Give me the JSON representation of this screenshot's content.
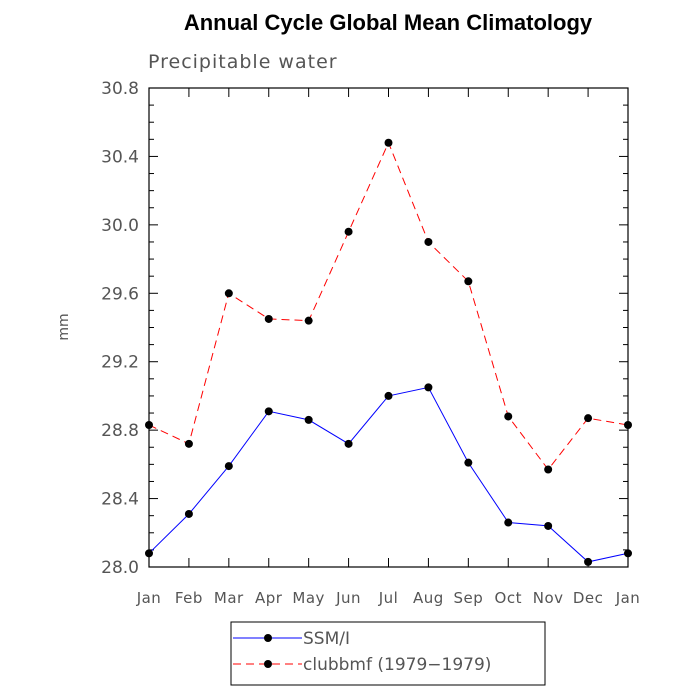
{
  "chart_data": {
    "type": "line",
    "title": "Annual Cycle Global Mean Climatology",
    "subtitle": "Precipitable water",
    "ylabel": "mm",
    "xlabel": "",
    "categories": [
      "Jan",
      "Feb",
      "Mar",
      "Apr",
      "May",
      "Jun",
      "Jul",
      "Aug",
      "Sep",
      "Oct",
      "Nov",
      "Dec",
      "Jan"
    ],
    "ylim": [
      28.0,
      30.8
    ],
    "yticks": [
      "28.0",
      "28.4",
      "28.8",
      "29.2",
      "29.6",
      "30.0",
      "30.4",
      "30.8"
    ],
    "grid": false,
    "legend_position": "bottom-center",
    "series": [
      {
        "name": "SSM/I",
        "color": "#0000ff",
        "line_style": "solid",
        "marker": "filled-circle",
        "values": [
          28.08,
          28.31,
          28.59,
          28.91,
          28.86,
          28.72,
          29.0,
          29.05,
          28.61,
          28.26,
          28.24,
          28.03,
          28.08
        ]
      },
      {
        "name": "clubbmf (1979−1979)",
        "color": "#ff0000",
        "line_style": "dashed",
        "marker": "filled-circle",
        "values": [
          28.83,
          28.72,
          29.6,
          29.45,
          29.44,
          29.96,
          30.48,
          29.9,
          29.67,
          28.88,
          28.57,
          28.87,
          28.83
        ]
      }
    ]
  }
}
